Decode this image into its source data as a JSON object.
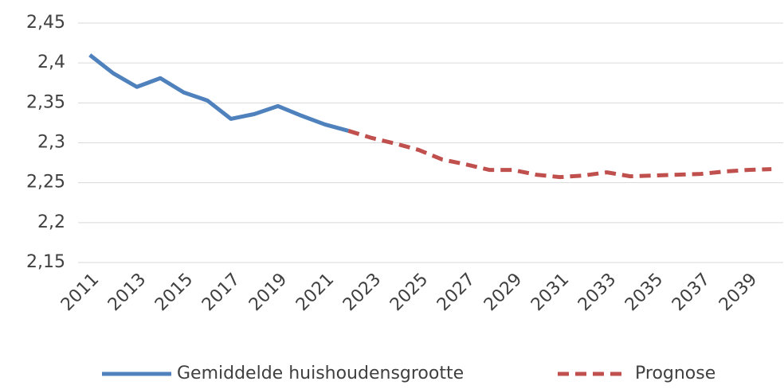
{
  "chart_data": {
    "type": "line",
    "categories": [
      "2011",
      null,
      "2013",
      null,
      "2015",
      null,
      "2017",
      null,
      "2019",
      null,
      "2021",
      null,
      "2023",
      null,
      "2025",
      null,
      "2027",
      null,
      "2029",
      null,
      "2031",
      null,
      "2033",
      null,
      "2035",
      null,
      "2037",
      null,
      "2039",
      null
    ],
    "series": [
      {
        "name": "Gemiddelde huishoudensgrootte",
        "color": "#4f81bd",
        "dash": false,
        "values": [
          2.41,
          2.387,
          2.37,
          2.381,
          2.363,
          2.353,
          2.33,
          2.336,
          2.346,
          2.334,
          2.323,
          2.315,
          null,
          null,
          null,
          null,
          null,
          null,
          null,
          null,
          null,
          null,
          null,
          null,
          null,
          null,
          null,
          null,
          null,
          null
        ]
      },
      {
        "name": "Prognose",
        "color": "#c0504d",
        "dash": true,
        "values": [
          null,
          null,
          null,
          null,
          null,
          null,
          null,
          null,
          null,
          null,
          null,
          2.315,
          2.306,
          2.299,
          2.291,
          2.279,
          2.273,
          2.266,
          2.266,
          2.26,
          2.257,
          2.259,
          2.263,
          2.258,
          2.259,
          2.26,
          2.261,
          2.264,
          2.266,
          2.267
        ]
      }
    ],
    "ylim": [
      2.15,
      2.45
    ],
    "yticks": [
      {
        "value": 2.15,
        "label": "2,15"
      },
      {
        "value": 2.2,
        "label": "2,2"
      },
      {
        "value": 2.25,
        "label": "2,25"
      },
      {
        "value": 2.3,
        "label": "2,3"
      },
      {
        "value": 2.35,
        "label": "2,35"
      },
      {
        "value": 2.4,
        "label": "2,4"
      },
      {
        "value": 2.45,
        "label": "2,45"
      }
    ],
    "grid": true,
    "legend": "bottom"
  }
}
